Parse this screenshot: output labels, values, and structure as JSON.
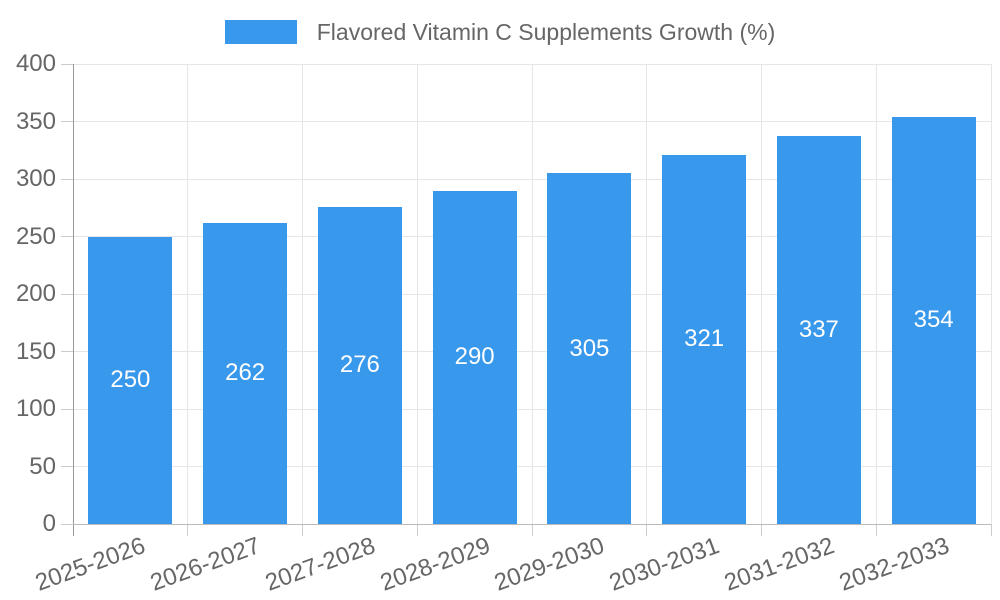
{
  "legend": {
    "label": "Flavored Vitamin C Supplements Growth (%)"
  },
  "chart_data": {
    "type": "bar",
    "title": "Flavored Vitamin C Supplements Growth (%)",
    "categories": [
      "2025-2026",
      "2026-2027",
      "2027-2028",
      "2028-2029",
      "2029-2030",
      "2030-2031",
      "2031-2032",
      "2032-2033"
    ],
    "values": [
      250,
      262,
      276,
      290,
      305,
      321,
      337,
      354
    ],
    "xlabel": "",
    "ylabel": "",
    "ylim": [
      0,
      400
    ],
    "ytick_step": 50,
    "ytick_labels": [
      "0",
      "50",
      "100",
      "150",
      "200",
      "250",
      "300",
      "350",
      "400"
    ],
    "grid": true,
    "legend_position": "top",
    "bar_labels_inside": true
  },
  "colors": {
    "bar": "#3898ec",
    "grid": "#e6e6e6",
    "y_axis_line": "#999999",
    "x_axis_line": "#bbbbbb",
    "tick": "#cccccc",
    "text": "#666666",
    "value_label": "#ffffff",
    "background": "#ffffff"
  }
}
